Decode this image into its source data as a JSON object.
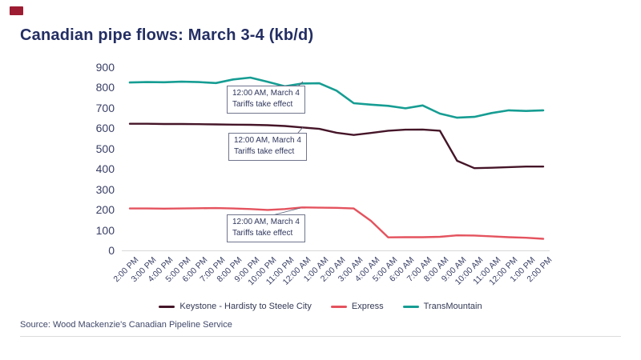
{
  "page": {
    "source": "Source: Wood Mackenzie's Canadian Pipeline Service",
    "brand_mark_color": "#9d1c31"
  },
  "colors": {
    "title_text": "#232e63",
    "axis_text": "#3a4066",
    "axis_line": "#d8d8d8",
    "legend_text": "#333954",
    "annotation_text": "#2f365c",
    "annotation_border": "#70758c",
    "callout_line": "#5a6078",
    "divider": "#dcdcdc"
  },
  "chart_data": {
    "type": "line",
    "title": "Canadian pipe flows: March 3-4 (kb/d)",
    "xlabel": "",
    "ylabel": "",
    "ylim": [
      0,
      900
    ],
    "yticks": [
      0,
      100,
      200,
      300,
      400,
      500,
      600,
      700,
      800,
      900
    ],
    "grid": false,
    "legend_position": "bottom-center",
    "x": [
      "2:00 PM",
      "3:00 PM",
      "4:00 PM",
      "5:00 PM",
      "6:00 PM",
      "7:00 PM",
      "8:00 PM",
      "9:00 PM",
      "10:00 PM",
      "11:00 PM",
      "12:00 AM",
      "1:00 AM",
      "2:00 AM",
      "3:00 AM",
      "4:00 AM",
      "5:00 AM",
      "6:00 AM",
      "7:00 AM",
      "8:00 AM",
      "9:00 AM",
      "10:00 AM",
      "11:00 AM",
      "12:00 PM",
      "1:00 PM",
      "2:00 PM"
    ],
    "series": [
      {
        "name": "Keystone - Hardisty to Steele City",
        "color": "#451528",
        "values": [
          622,
          622,
          621,
          621,
          620,
          619,
          618,
          617,
          615,
          611,
          604,
          597,
          578,
          567,
          577,
          588,
          593,
          594,
          588,
          440,
          404,
          406,
          409,
          412,
          412
        ]
      },
      {
        "name": "Express",
        "color": "#e4535e",
        "values": [
          206,
          206,
          205,
          206,
          207,
          208,
          206,
          203,
          199,
          203,
          211,
          210,
          209,
          206,
          145,
          64,
          65,
          65,
          67,
          74,
          73,
          69,
          65,
          62,
          57
        ]
      },
      {
        "name": "TransMountain",
        "color": "#169d93",
        "values": [
          825,
          827,
          826,
          829,
          827,
          822,
          840,
          849,
          828,
          806,
          820,
          821,
          785,
          723,
          716,
          710,
          698,
          712,
          672,
          652,
          656,
          675,
          688,
          685,
          688
        ]
      }
    ],
    "annotations": [
      {
        "target_series": "TransMountain",
        "x": "12:00 AM",
        "lines": [
          "12:00 AM, March 4",
          "Tariffs take effect"
        ]
      },
      {
        "target_series": "Keystone - Hardisty to Steele City",
        "x": "12:00 AM",
        "lines": [
          "12:00 AM, March 4",
          "Tariffs take effect"
        ]
      },
      {
        "target_series": "Express",
        "x": "12:00 AM",
        "lines": [
          "12:00 AM, March 4",
          "Tariffs take effect"
        ]
      }
    ]
  }
}
